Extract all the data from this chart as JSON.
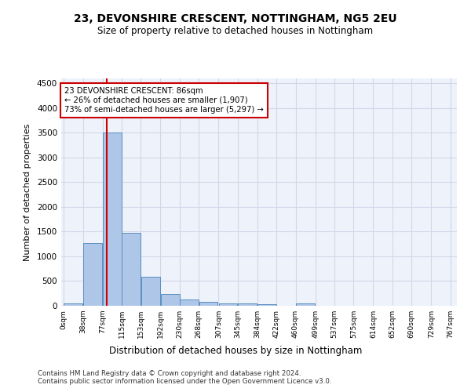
{
  "title1": "23, DEVONSHIRE CRESCENT, NOTTINGHAM, NG5 2EU",
  "title2": "Size of property relative to detached houses in Nottingham",
  "xlabel": "Distribution of detached houses by size in Nottingham",
  "ylabel": "Number of detached properties",
  "footer1": "Contains HM Land Registry data © Crown copyright and database right 2024.",
  "footer2": "Contains public sector information licensed under the Open Government Licence v3.0.",
  "annotation_line1": "23 DEVONSHIRE CRESCENT: 86sqm",
  "annotation_line2": "← 26% of detached houses are smaller (1,907)",
  "annotation_line3": "73% of semi-detached houses are larger (5,297) →",
  "property_size": 86,
  "bar_left_edges": [
    0,
    38,
    77,
    115,
    153,
    192,
    230,
    268,
    307,
    345,
    384,
    422,
    460,
    499,
    537,
    575,
    614,
    652,
    690,
    729
  ],
  "bar_heights": [
    40,
    1270,
    3500,
    1480,
    580,
    240,
    120,
    85,
    55,
    40,
    30,
    0,
    55,
    0,
    0,
    0,
    0,
    0,
    0,
    0
  ],
  "bar_color": "#aec6e8",
  "bar_edge_color": "#5a8fc0",
  "red_line_color": "#cc0000",
  "annotation_box_color": "#cc0000",
  "grid_color": "#d0d8e8",
  "ylim": [
    0,
    4600
  ],
  "yticks": [
    0,
    500,
    1000,
    1500,
    2000,
    2500,
    3000,
    3500,
    4000,
    4500
  ],
  "tick_labels": [
    "0sqm",
    "38sqm",
    "77sqm",
    "115sqm",
    "153sqm",
    "192sqm",
    "230sqm",
    "268sqm",
    "307sqm",
    "345sqm",
    "384sqm",
    "422sqm",
    "460sqm",
    "499sqm",
    "537sqm",
    "575sqm",
    "614sqm",
    "652sqm",
    "690sqm",
    "729sqm",
    "767sqm"
  ],
  "background_color": "#eef2fa"
}
